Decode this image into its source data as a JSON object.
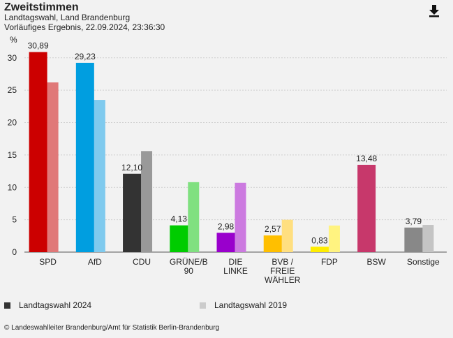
{
  "header": {
    "title": "Zweitstimmen",
    "subtitle": "Landtagswahl, Land Brandenburg",
    "status": "Vorläufiges Ergebnis, 22.09.2024, 23:36:30"
  },
  "download_icon": "download-icon",
  "chart_data": {
    "type": "bar",
    "ylabel": "%",
    "ylim": [
      0,
      31
    ],
    "yticks": [
      0,
      5,
      10,
      15,
      20,
      25,
      30
    ],
    "grid": true,
    "categories": [
      [
        "SPD"
      ],
      [
        "AfD"
      ],
      [
        "CDU"
      ],
      [
        "GRÜNE/B",
        "90"
      ],
      [
        "DIE",
        "LINKE"
      ],
      [
        "BVB /",
        "FREIE",
        "WÄHLER"
      ],
      [
        "FDP"
      ],
      [
        "BSW"
      ],
      [
        "Sonstige"
      ]
    ],
    "series": [
      {
        "name": "Landtagswahl 2024",
        "values": [
          30.89,
          29.23,
          12.1,
          4.13,
          2.98,
          2.57,
          0.83,
          13.48,
          3.79
        ],
        "labels": [
          "30,89",
          "29,23",
          "12,10",
          "4,13",
          "2,98",
          "2,57",
          "0,83",
          "13,48",
          "3,79"
        ],
        "colors": [
          "#cc0000",
          "#009ee0",
          "#333333",
          "#00cc00",
          "#9900cc",
          "#ffbf00",
          "#ffed00",
          "#c7386b",
          "#888888"
        ]
      },
      {
        "name": "Landtagswahl 2019",
        "values": [
          26.2,
          23.5,
          15.6,
          10.8,
          10.7,
          5.0,
          4.1,
          null,
          4.2
        ],
        "colors": [
          "#e07878",
          "#7fcaee",
          "#999999",
          "#80e080",
          "#cc7ae0",
          "#ffdf80",
          "#fff380",
          null,
          "#c4c4c4"
        ]
      }
    ],
    "legend_position": "bottom",
    "legend_colors": [
      "#333333",
      "#cccccc"
    ]
  },
  "source": "© Landeswahlleiter Brandenburg/Amt für Statistik Berlin-Brandenburg"
}
